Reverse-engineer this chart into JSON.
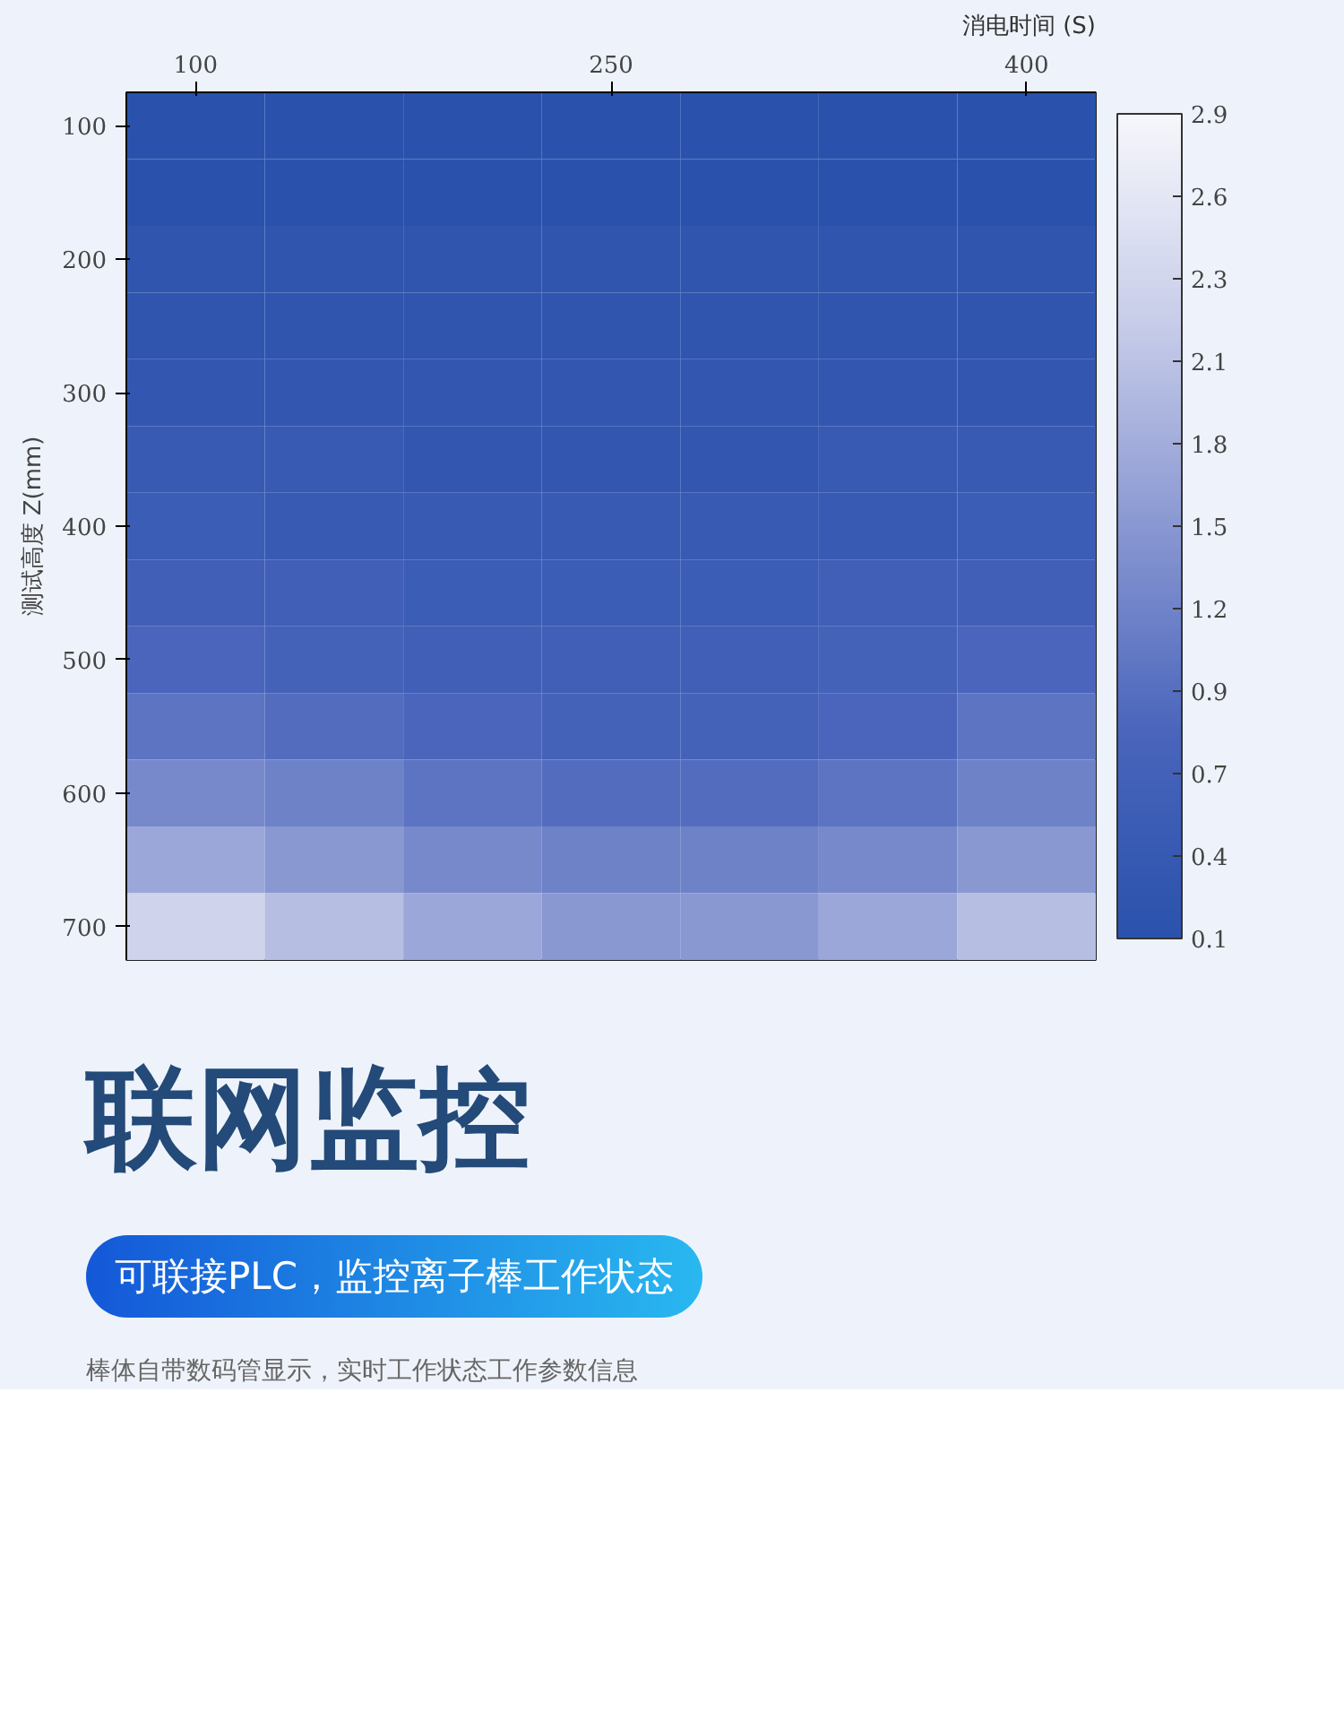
{
  "chart_data": {
    "type": "heatmap",
    "ylabel": "测试高度 Z(mm)",
    "clabel": "消电时间 (S)",
    "categories": [
      "100",
      null,
      null,
      "250",
      null,
      null,
      "400"
    ],
    "y_categories": [
      "100",
      null,
      "200",
      null,
      "300",
      null,
      "400",
      null,
      "500",
      null,
      "600",
      null,
      "700"
    ],
    "clim": [
      0.1,
      2.9
    ],
    "cticks": [
      0.1,
      {
        "value": 0.38,
        "label": "0.4"
      },
      {
        "value": 0.66,
        "label": "0.7"
      },
      {
        "value": 0.94,
        "label": "0.9"
      },
      {
        "value": 1.22,
        "label": "1.2"
      },
      1.5,
      {
        "value": 1.78,
        "label": "1.8"
      },
      {
        "value": 2.06,
        "label": "2.1"
      },
      {
        "value": 2.34,
        "label": "2.3"
      },
      {
        "value": 2.62,
        "label": "2.6"
      },
      2.9
    ],
    "cells": [
      [
        0.1,
        0.1,
        0.1,
        0.1,
        0.1,
        0.1,
        0.1
      ],
      [
        0.1,
        0.1,
        0.1,
        0.1,
        0.1,
        0.1,
        0.1
      ],
      [
        0.2,
        0.2,
        0.2,
        0.2,
        0.2,
        0.2,
        0.2
      ],
      [
        0.2,
        0.2,
        0.2,
        0.2,
        0.2,
        0.2,
        0.2
      ],
      [
        0.3,
        0.3,
        0.3,
        0.3,
        0.3,
        0.3,
        0.3
      ],
      [
        0.4,
        0.4,
        0.3,
        0.3,
        0.3,
        0.4,
        0.4
      ],
      [
        0.5,
        0.4,
        0.4,
        0.4,
        0.4,
        0.4,
        0.5
      ],
      [
        0.6,
        0.6,
        0.5,
        0.5,
        0.5,
        0.6,
        0.6
      ],
      [
        0.8,
        0.7,
        0.6,
        0.6,
        0.6,
        0.7,
        0.8
      ],
      [
        1.0,
        0.9,
        0.8,
        0.7,
        0.7,
        0.8,
        1.0
      ],
      [
        1.3,
        1.2,
        1.0,
        0.9,
        0.9,
        1.0,
        1.2
      ],
      [
        1.7,
        1.5,
        1.3,
        1.2,
        1.2,
        1.3,
        1.5
      ],
      [
        2.3,
        2.0,
        1.7,
        1.5,
        1.5,
        1.7,
        2.0
      ]
    ],
    "annotations": [
      "联网监控",
      "可联接PLC，监控离子棒工作状态",
      "棒体自带数码管显示，实时工作状态工作参数信息"
    ]
  }
}
